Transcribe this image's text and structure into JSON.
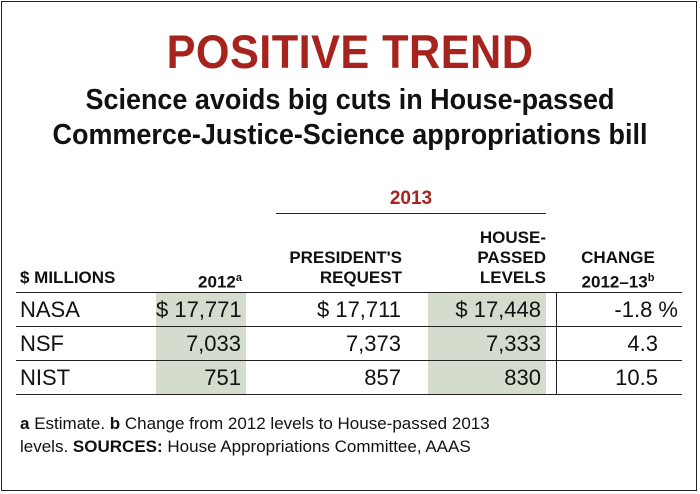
{
  "title": "POSITIVE TREND",
  "subtitle_line1": "Science avoids big cuts in House-passed",
  "subtitle_line2": "Commerce-Justice-Science appropriations bill",
  "chart_data": {
    "type": "table",
    "group_header": "2013",
    "columns": {
      "label": "$ MILLIONS",
      "y2012": "2012",
      "y2012_sup": "a",
      "request_l1": "PRESIDENT'S",
      "request_l2": "REQUEST",
      "house_l1": "HOUSE-",
      "house_l2": "PASSED",
      "house_l3": "LEVELS",
      "change_l1": "CHANGE",
      "change_l2": "2012–13",
      "change_sup": "b"
    },
    "rows": [
      {
        "agency": "NASA",
        "y2012": "$ 17,771",
        "request": "$ 17,711",
        "house": "$ 17,448",
        "change": "-1.8 %"
      },
      {
        "agency": "NSF",
        "y2012": "7,033",
        "request": "7,373",
        "house": "7,333",
        "change": "4.3"
      },
      {
        "agency": "NIST",
        "y2012": "751",
        "request": "857",
        "house": "830",
        "change": "10.5"
      }
    ]
  },
  "footnote": {
    "a_label": "a",
    "a_text": " Estimate.  ",
    "b_label": "b",
    "b_text": " Change from 2012 levels to House-passed 2013",
    "b_text2": "levels. ",
    "sources_label": "SOURCES:",
    "sources_text": " House Appropriations Committee, AAAS"
  }
}
